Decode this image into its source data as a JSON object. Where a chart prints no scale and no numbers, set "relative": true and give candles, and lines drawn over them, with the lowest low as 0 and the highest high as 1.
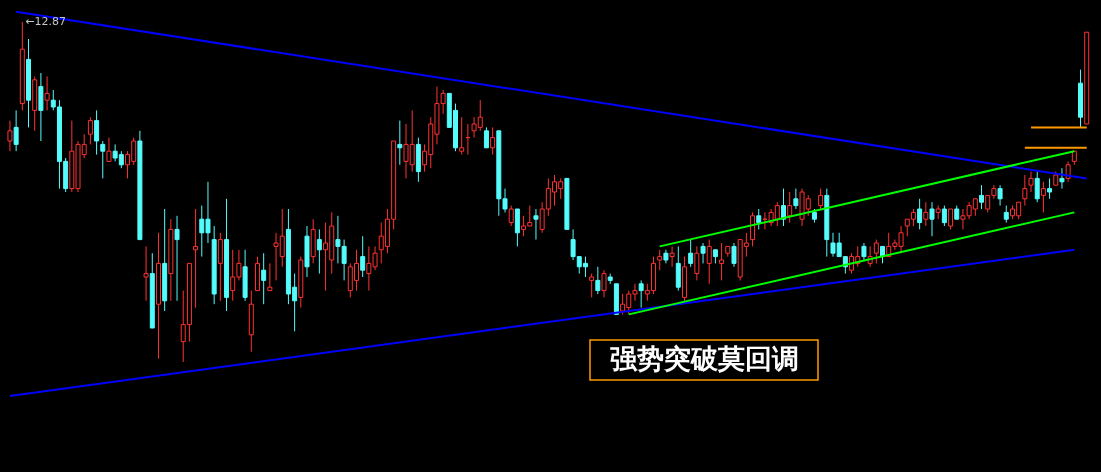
{
  "chart_data": {
    "type": "candlestick",
    "relative": true,
    "categories": [
      null,
      null,
      null,
      null,
      null,
      null,
      null,
      null,
      null,
      null,
      null,
      null,
      null,
      null,
      null,
      null,
      null,
      null,
      null,
      null,
      null,
      null,
      null,
      null,
      null,
      null,
      null,
      null,
      null,
      null,
      null,
      null,
      null,
      null,
      null,
      null,
      null,
      null,
      null,
      null,
      null,
      null,
      null,
      null,
      null,
      null,
      null,
      null,
      null,
      null,
      null,
      null,
      null,
      null,
      null,
      null,
      null,
      null,
      null,
      null,
      null,
      null,
      null,
      null,
      null,
      null,
      null,
      null,
      null,
      null,
      null,
      null,
      null,
      null,
      null,
      null,
      null,
      null,
      null,
      null,
      null,
      null,
      null,
      null,
      null,
      null,
      null,
      null,
      null,
      null,
      null,
      null,
      null,
      null,
      null,
      null,
      null,
      null,
      null,
      null,
      null,
      null,
      null,
      null,
      null,
      null,
      null,
      null,
      null,
      null,
      null,
      null,
      null,
      null,
      null,
      null,
      null,
      null,
      null,
      null,
      null,
      null,
      null,
      null,
      null,
      null,
      null,
      null,
      null,
      null,
      null,
      null,
      null,
      null,
      null,
      null,
      null,
      null,
      null,
      null,
      null,
      null,
      null,
      null,
      null,
      null,
      null,
      null,
      null,
      null,
      null,
      null,
      null,
      null,
      null,
      null,
      null,
      null,
      null,
      null,
      null,
      null,
      null,
      null,
      null,
      null,
      null,
      null,
      null,
      null,
      null,
      null,
      null,
      null,
      null
    ],
    "ohlc": [
      [
        0.65,
        0.71,
        0.62,
        0.68
      ],
      [
        0.69,
        0.74,
        0.62,
        0.64
      ],
      [
        0.76,
        1.0,
        0.74,
        0.92
      ],
      [
        0.89,
        0.95,
        0.69,
        0.77
      ],
      [
        0.74,
        0.84,
        0.68,
        0.83
      ],
      [
        0.81,
        0.85,
        0.65,
        0.74
      ],
      [
        0.77,
        0.84,
        0.74,
        0.79
      ],
      [
        0.77,
        0.8,
        0.74,
        0.75
      ],
      [
        0.75,
        0.77,
        0.51,
        0.59
      ],
      [
        0.59,
        0.6,
        0.5,
        0.51
      ],
      [
        0.51,
        0.71,
        0.5,
        0.62
      ],
      [
        0.51,
        0.65,
        0.5,
        0.64
      ],
      [
        0.61,
        0.67,
        0.6,
        0.64
      ],
      [
        0.67,
        0.72,
        0.64,
        0.71
      ],
      [
        0.71,
        0.74,
        0.61,
        0.65
      ],
      [
        0.64,
        0.65,
        0.54,
        0.62
      ],
      [
        0.59,
        0.66,
        0.59,
        0.62
      ],
      [
        0.62,
        0.64,
        0.59,
        0.6
      ],
      [
        0.61,
        0.62,
        0.57,
        0.58
      ],
      [
        0.58,
        0.62,
        0.54,
        0.61
      ],
      [
        0.59,
        0.66,
        0.58,
        0.65
      ],
      [
        0.65,
        0.68,
        0.36,
        0.36
      ],
      [
        0.25,
        0.34,
        0.18,
        0.26
      ],
      [
        0.26,
        0.32,
        0.1,
        0.1
      ],
      [
        0.17,
        0.38,
        0.01,
        0.29
      ],
      [
        0.29,
        0.45,
        0.15,
        0.18
      ],
      [
        0.26,
        0.42,
        0.18,
        0.39
      ],
      [
        0.39,
        0.43,
        0.18,
        0.36
      ],
      [
        0.06,
        0.21,
        0.0,
        0.11
      ],
      [
        0.11,
        0.29,
        0.06,
        0.29
      ],
      [
        0.33,
        0.45,
        0.16,
        0.34
      ],
      [
        0.42,
        0.46,
        0.31,
        0.38
      ],
      [
        0.42,
        0.53,
        0.35,
        0.38
      ],
      [
        0.36,
        0.4,
        0.17,
        0.2
      ],
      [
        0.29,
        0.38,
        0.18,
        0.36
      ],
      [
        0.36,
        0.48,
        0.15,
        0.19
      ],
      [
        0.21,
        0.33,
        0.18,
        0.25
      ],
      [
        0.25,
        0.33,
        0.24,
        0.29
      ],
      [
        0.28,
        0.33,
        0.18,
        0.19
      ],
      [
        0.08,
        0.21,
        0.03,
        0.17
      ],
      [
        0.21,
        0.31,
        0.21,
        0.29
      ],
      [
        0.27,
        0.32,
        0.17,
        0.24
      ],
      [
        0.21,
        0.29,
        0.21,
        0.22
      ],
      [
        0.34,
        0.38,
        0.24,
        0.35
      ],
      [
        0.31,
        0.45,
        0.28,
        0.37
      ],
      [
        0.39,
        0.45,
        0.17,
        0.2
      ],
      [
        0.22,
        0.26,
        0.09,
        0.18
      ],
      [
        0.19,
        0.31,
        0.16,
        0.3
      ],
      [
        0.37,
        0.4,
        0.25,
        0.28
      ],
      [
        0.31,
        0.42,
        0.29,
        0.39
      ],
      [
        0.36,
        0.39,
        0.26,
        0.33
      ],
      [
        0.33,
        0.41,
        0.21,
        0.35
      ],
      [
        0.3,
        0.44,
        0.26,
        0.4
      ],
      [
        0.36,
        0.43,
        0.29,
        0.34
      ],
      [
        0.34,
        0.36,
        0.24,
        0.29
      ],
      [
        0.21,
        0.29,
        0.19,
        0.28
      ],
      [
        0.24,
        0.33,
        0.21,
        0.29
      ],
      [
        0.31,
        0.37,
        0.25,
        0.27
      ],
      [
        0.26,
        0.34,
        0.21,
        0.29
      ],
      [
        0.28,
        0.34,
        0.27,
        0.32
      ],
      [
        0.33,
        0.41,
        0.29,
        0.37
      ],
      [
        0.34,
        0.45,
        0.32,
        0.42
      ],
      [
        0.42,
        0.65,
        0.39,
        0.65
      ],
      [
        0.64,
        0.71,
        0.58,
        0.63
      ],
      [
        0.59,
        0.7,
        0.54,
        0.64
      ],
      [
        0.58,
        0.74,
        0.56,
        0.64
      ],
      [
        0.64,
        0.66,
        0.53,
        0.56
      ],
      [
        0.58,
        0.64,
        0.56,
        0.62
      ],
      [
        0.61,
        0.72,
        0.57,
        0.7
      ],
      [
        0.67,
        0.81,
        0.64,
        0.76
      ],
      [
        0.76,
        0.8,
        0.73,
        0.79
      ],
      [
        0.79,
        0.79,
        0.69,
        0.69
      ],
      [
        0.74,
        0.76,
        0.62,
        0.63
      ],
      [
        0.62,
        0.72,
        0.61,
        0.63
      ],
      [
        0.66,
        0.7,
        0.61,
        0.66
      ],
      [
        0.68,
        0.72,
        0.66,
        0.7
      ],
      [
        0.69,
        0.77,
        0.68,
        0.72
      ],
      [
        0.68,
        0.69,
        0.63,
        0.63
      ],
      [
        0.63,
        0.69,
        0.61,
        0.66
      ],
      [
        0.68,
        0.68,
        0.43,
        0.48
      ],
      [
        0.48,
        0.51,
        0.44,
        0.45
      ],
      [
        0.41,
        0.46,
        0.4,
        0.45
      ],
      [
        0.45,
        0.45,
        0.34,
        0.38
      ],
      [
        0.39,
        0.43,
        0.37,
        0.4
      ],
      [
        0.4,
        0.46,
        0.4,
        0.41
      ],
      [
        0.43,
        0.45,
        0.36,
        0.42
      ],
      [
        0.39,
        0.47,
        0.38,
        0.45
      ],
      [
        0.45,
        0.54,
        0.43,
        0.51
      ],
      [
        0.5,
        0.55,
        0.46,
        0.53
      ],
      [
        0.51,
        0.54,
        0.48,
        0.53
      ],
      [
        0.54,
        0.54,
        0.39,
        0.39
      ],
      [
        0.36,
        0.39,
        0.3,
        0.31
      ],
      [
        0.31,
        0.31,
        0.26,
        0.28
      ],
      [
        0.29,
        0.31,
        0.25,
        0.28
      ],
      [
        0.24,
        0.26,
        0.19,
        0.25
      ],
      [
        0.24,
        0.28,
        0.2,
        0.21
      ],
      [
        0.21,
        0.27,
        0.19,
        0.26
      ],
      [
        0.25,
        0.26,
        0.23,
        0.24
      ],
      [
        0.23,
        0.23,
        0.14,
        0.14
      ],
      [
        0.15,
        0.2,
        0.14,
        0.17
      ],
      [
        0.16,
        0.21,
        0.14,
        0.2
      ],
      [
        0.2,
        0.23,
        0.18,
        0.21
      ],
      [
        0.23,
        0.24,
        0.16,
        0.21
      ],
      [
        0.2,
        0.23,
        0.18,
        0.21
      ],
      [
        0.21,
        0.31,
        0.2,
        0.29
      ],
      [
        0.3,
        0.33,
        0.27,
        0.31
      ],
      [
        0.32,
        0.33,
        0.29,
        0.3
      ],
      [
        0.31,
        0.34,
        0.28,
        0.32
      ],
      [
        0.29,
        0.34,
        0.21,
        0.22
      ],
      [
        0.19,
        0.31,
        0.18,
        0.28
      ],
      [
        0.32,
        0.36,
        0.28,
        0.29
      ],
      [
        0.26,
        0.34,
        0.24,
        0.32
      ],
      [
        0.34,
        0.35,
        0.29,
        0.32
      ],
      [
        0.29,
        0.36,
        0.23,
        0.34
      ],
      [
        0.33,
        0.33,
        0.29,
        0.31
      ],
      [
        0.29,
        0.35,
        0.24,
        0.3
      ],
      [
        0.32,
        0.34,
        0.31,
        0.34
      ],
      [
        0.34,
        0.35,
        0.28,
        0.29
      ],
      [
        0.25,
        0.36,
        0.24,
        0.36
      ],
      [
        0.34,
        0.38,
        0.31,
        0.35
      ],
      [
        0.36,
        0.44,
        0.34,
        0.43
      ],
      [
        0.43,
        0.45,
        0.39,
        0.41
      ],
      [
        0.42,
        0.44,
        0.39,
        0.42
      ],
      [
        0.41,
        0.45,
        0.4,
        0.44
      ],
      [
        0.42,
        0.47,
        0.4,
        0.46
      ],
      [
        0.46,
        0.51,
        0.4,
        0.42
      ],
      [
        0.43,
        0.5,
        0.41,
        0.46
      ],
      [
        0.48,
        0.51,
        0.45,
        0.46
      ],
      [
        0.42,
        0.51,
        0.4,
        0.5
      ],
      [
        0.45,
        0.49,
        0.43,
        0.48
      ],
      [
        0.44,
        0.45,
        0.41,
        0.42
      ],
      [
        0.46,
        0.51,
        0.45,
        0.49
      ],
      [
        0.49,
        0.51,
        0.31,
        0.36
      ],
      [
        0.35,
        0.38,
        0.31,
        0.32
      ],
      [
        0.35,
        0.38,
        0.31,
        0.31
      ],
      [
        0.31,
        0.31,
        0.26,
        0.28
      ],
      [
        0.27,
        0.32,
        0.26,
        0.31
      ],
      [
        0.29,
        0.34,
        0.28,
        0.31
      ],
      [
        0.34,
        0.35,
        0.3,
        0.31
      ],
      [
        0.29,
        0.34,
        0.28,
        0.31
      ],
      [
        0.32,
        0.36,
        0.29,
        0.35
      ],
      [
        0.34,
        0.34,
        0.29,
        0.31
      ],
      [
        0.31,
        0.38,
        0.31,
        0.34
      ],
      [
        0.34,
        0.36,
        0.33,
        0.35
      ],
      [
        0.34,
        0.4,
        0.32,
        0.38
      ],
      [
        0.4,
        0.42,
        0.37,
        0.42
      ],
      [
        0.42,
        0.45,
        0.4,
        0.44
      ],
      [
        0.45,
        0.48,
        0.39,
        0.41
      ],
      [
        0.42,
        0.47,
        0.4,
        0.44
      ],
      [
        0.45,
        0.47,
        0.37,
        0.42
      ],
      [
        0.44,
        0.46,
        0.42,
        0.45
      ],
      [
        0.45,
        0.46,
        0.4,
        0.41
      ],
      [
        0.4,
        0.45,
        0.39,
        0.45
      ],
      [
        0.45,
        0.46,
        0.42,
        0.42
      ],
      [
        0.42,
        0.45,
        0.39,
        0.43
      ],
      [
        0.43,
        0.47,
        0.42,
        0.46
      ],
      [
        0.45,
        0.48,
        0.43,
        0.48
      ],
      [
        0.49,
        0.52,
        0.45,
        0.47
      ],
      [
        0.45,
        0.49,
        0.44,
        0.49
      ],
      [
        0.49,
        0.52,
        0.48,
        0.51
      ],
      [
        0.51,
        0.52,
        0.46,
        0.48
      ],
      [
        0.44,
        0.46,
        0.41,
        0.42
      ],
      [
        0.43,
        0.46,
        0.42,
        0.45
      ],
      [
        0.43,
        0.47,
        0.42,
        0.47
      ],
      [
        0.48,
        0.55,
        0.46,
        0.51
      ],
      [
        0.52,
        0.56,
        0.5,
        0.54
      ],
      [
        0.54,
        0.56,
        0.47,
        0.48
      ],
      [
        0.49,
        0.53,
        0.44,
        0.51
      ],
      [
        0.51,
        0.54,
        0.48,
        0.5
      ],
      [
        0.52,
        0.56,
        0.52,
        0.55
      ],
      [
        0.54,
        0.57,
        0.51,
        0.53
      ],
      [
        0.54,
        0.59,
        0.53,
        0.58
      ],
      [
        0.59,
        0.62,
        0.58,
        0.62
      ],
      [
        0.82,
        0.86,
        0.69,
        0.72
      ],
      [
        0.7,
        0.97,
        0.7,
        0.97
      ]
    ],
    "series": [
      {
        "type": "line",
        "color": "#0000ff",
        "values": [
          null,
          1.03,
          null,
          null,
          null,
          null,
          null,
          null,
          null,
          null,
          null,
          null,
          null,
          null,
          null,
          null,
          null,
          null,
          null,
          null,
          null,
          null,
          null,
          null,
          null,
          null,
          null,
          null,
          null,
          null,
          null,
          null,
          null,
          null,
          null,
          null,
          null,
          null,
          null,
          null,
          null,
          null,
          null,
          null,
          null,
          null,
          null,
          null,
          null,
          null,
          null,
          null,
          null,
          null,
          null,
          null,
          null,
          null,
          null,
          null,
          null,
          null,
          null,
          null,
          null,
          null,
          null,
          null,
          null,
          null,
          null,
          null,
          null,
          null,
          null,
          null,
          null,
          null,
          null,
          null,
          null,
          null,
          null,
          null,
          null,
          null,
          null,
          null,
          null,
          null,
          null,
          null,
          null,
          null,
          null,
          null,
          null,
          null,
          null,
          null,
          null,
          null,
          null,
          null,
          null,
          null,
          null,
          null,
          null,
          null,
          null,
          null,
          null,
          null,
          null,
          null,
          null,
          null,
          null,
          null,
          null,
          null,
          null,
          null,
          null,
          null,
          null,
          null,
          null,
          null,
          null,
          null,
          null,
          null,
          null,
          null,
          null,
          null,
          null,
          null,
          null,
          null,
          null,
          null,
          null,
          null,
          null,
          null,
          null,
          null,
          null,
          null,
          null,
          null,
          null,
          null,
          null,
          null,
          null,
          null,
          null,
          null,
          null,
          null,
          null,
          null,
          null,
          null,
          null,
          null,
          null,
          null,
          null,
          null,
          0.54
        ]
      },
      {
        "type": "line",
        "color": "#0000ff",
        "values": [
          -0.1,
          null,
          null,
          null,
          null,
          null,
          null,
          null,
          null,
          null,
          null,
          null,
          null,
          null,
          null,
          null,
          null,
          null,
          null,
          null,
          null,
          null,
          null,
          null,
          null,
          null,
          null,
          null,
          null,
          null,
          null,
          null,
          null,
          null,
          null,
          null,
          null,
          null,
          null,
          null,
          null,
          null,
          null,
          null,
          null,
          null,
          null,
          null,
          null,
          null,
          null,
          null,
          null,
          null,
          null,
          null,
          null,
          null,
          null,
          null,
          null,
          null,
          null,
          null,
          null,
          null,
          null,
          null,
          null,
          null,
          null,
          null,
          null,
          null,
          null,
          null,
          null,
          null,
          null,
          null,
          null,
          null,
          null,
          null,
          null,
          null,
          null,
          null,
          null,
          null,
          null,
          null,
          null,
          null,
          null,
          null,
          null,
          null,
          null,
          null,
          null,
          null,
          null,
          null,
          null,
          null,
          null,
          null,
          null,
          null,
          null,
          null,
          null,
          null,
          null,
          null,
          null,
          null,
          null,
          null,
          null,
          null,
          null,
          null,
          null,
          null,
          null,
          null,
          null,
          null,
          null,
          null,
          null,
          null,
          null,
          null,
          null,
          null,
          null,
          null,
          null,
          null,
          null,
          null,
          null,
          null,
          null,
          null,
          null,
          null,
          null,
          null,
          null,
          null,
          null,
          null,
          null,
          null,
          null,
          null,
          null,
          null,
          null,
          null,
          null,
          null,
          null,
          null,
          null,
          null,
          null,
          null,
          0.33,
          null,
          null
        ]
      },
      {
        "type": "line",
        "color": "#00ff00",
        "values": [
          null,
          null,
          null,
          null,
          null,
          null,
          null,
          null,
          null,
          null,
          null,
          null,
          null,
          null,
          null,
          null,
          null,
          null,
          null,
          null,
          null,
          null,
          null,
          null,
          null,
          null,
          null,
          null,
          null,
          null,
          null,
          null,
          null,
          null,
          null,
          null,
          null,
          null,
          null,
          null,
          null,
          null,
          null,
          null,
          null,
          null,
          null,
          null,
          null,
          null,
          null,
          null,
          null,
          null,
          null,
          null,
          null,
          null,
          null,
          null,
          null,
          null,
          null,
          null,
          null,
          null,
          null,
          null,
          null,
          null,
          null,
          null,
          null,
          null,
          null,
          null,
          null,
          null,
          null,
          null,
          null,
          null,
          null,
          null,
          null,
          null,
          null,
          null,
          null,
          null,
          null,
          null,
          null,
          null,
          null,
          null,
          null,
          null,
          null,
          null,
          null,
          null,
          null,
          null,
          null,
          0.34,
          null,
          null,
          null,
          null,
          null,
          null,
          null,
          null,
          null,
          null,
          null,
          null,
          null,
          null,
          null,
          null,
          null,
          null,
          null,
          null,
          null,
          null,
          null,
          null,
          null,
          null,
          null,
          null,
          null,
          null,
          null,
          null,
          null,
          null,
          null,
          null,
          null,
          null,
          null,
          null,
          null,
          null,
          null,
          null,
          null,
          null,
          null,
          null,
          null,
          null,
          null,
          null,
          null,
          null,
          null,
          null,
          null,
          null,
          null,
          null,
          null,
          null,
          null,
          null,
          null,
          null,
          0.62,
          null,
          null
        ]
      },
      {
        "type": "line",
        "color": "#00ff00",
        "values": [
          null,
          null,
          null,
          null,
          null,
          null,
          null,
          null,
          null,
          null,
          null,
          null,
          null,
          null,
          null,
          null,
          null,
          null,
          null,
          null,
          null,
          null,
          null,
          null,
          null,
          null,
          null,
          null,
          null,
          null,
          null,
          null,
          null,
          null,
          null,
          null,
          null,
          null,
          null,
          null,
          null,
          null,
          null,
          null,
          null,
          null,
          null,
          null,
          null,
          null,
          null,
          null,
          null,
          null,
          null,
          null,
          null,
          null,
          null,
          null,
          null,
          null,
          null,
          null,
          null,
          null,
          null,
          null,
          null,
          null,
          null,
          null,
          null,
          null,
          null,
          null,
          null,
          null,
          null,
          null,
          null,
          null,
          null,
          null,
          null,
          null,
          null,
          null,
          null,
          null,
          null,
          null,
          null,
          null,
          null,
          null,
          null,
          null,
          null,
          null,
          0.14,
          null,
          null,
          null,
          null,
          null,
          null,
          null,
          null,
          null,
          null,
          null,
          null,
          null,
          null,
          null,
          null,
          null,
          null,
          null,
          null,
          null,
          null,
          null,
          null,
          null,
          null,
          null,
          null,
          null,
          null,
          null,
          null,
          null,
          null,
          null,
          null,
          null,
          null,
          null,
          null,
          null,
          null,
          null,
          null,
          null,
          null,
          null,
          null,
          null,
          null,
          null,
          null,
          null,
          null,
          null,
          null,
          null,
          null,
          null,
          null,
          null,
          null,
          null,
          null,
          null,
          null,
          null,
          null,
          null,
          null,
          null,
          0.44,
          null,
          null
        ]
      },
      {
        "type": "line",
        "color": "#ff9900",
        "values": [
          null,
          null,
          null,
          null,
          null,
          null,
          null,
          null,
          null,
          null,
          null,
          null,
          null,
          null,
          null,
          null,
          null,
          null,
          null,
          null,
          null,
          null,
          null,
          null,
          null,
          null,
          null,
          null,
          null,
          null,
          null,
          null,
          null,
          null,
          null,
          null,
          null,
          null,
          null,
          null,
          null,
          null,
          null,
          null,
          null,
          null,
          null,
          null,
          null,
          null,
          null,
          null,
          null,
          null,
          null,
          null,
          null,
          null,
          null,
          null,
          null,
          null,
          null,
          null,
          null,
          null,
          null,
          null,
          null,
          null,
          null,
          null,
          null,
          null,
          null,
          null,
          null,
          null,
          null,
          null,
          null,
          null,
          null,
          null,
          null,
          null,
          null,
          null,
          null,
          null,
          null,
          null,
          null,
          null,
          null,
          null,
          null,
          null,
          null,
          null,
          null,
          null,
          null,
          null,
          null,
          null,
          null,
          null,
          null,
          null,
          null,
          null,
          null,
          null,
          null,
          null,
          null,
          null,
          null,
          null,
          null,
          null,
          null,
          null,
          null,
          null,
          null,
          null,
          null,
          null,
          null,
          null,
          null,
          null,
          null,
          null,
          null,
          null,
          null,
          null,
          null,
          null,
          null,
          null,
          null,
          null,
          null,
          null,
          null,
          null,
          null,
          null,
          null,
          null,
          null,
          null,
          null,
          null,
          null,
          null,
          null,
          null,
          null,
          null,
          null,
          0.69,
          null,
          null,
          null,
          null,
          null,
          null,
          null,
          null,
          0.69
        ]
      },
      {
        "type": "line",
        "color": "#ff9900",
        "values": [
          null,
          null,
          null,
          null,
          null,
          null,
          null,
          null,
          null,
          null,
          null,
          null,
          null,
          null,
          null,
          null,
          null,
          null,
          null,
          null,
          null,
          null,
          null,
          null,
          null,
          null,
          null,
          null,
          null,
          null,
          null,
          null,
          null,
          null,
          null,
          null,
          null,
          null,
          null,
          null,
          null,
          null,
          null,
          null,
          null,
          null,
          null,
          null,
          null,
          null,
          null,
          null,
          null,
          null,
          null,
          null,
          null,
          null,
          null,
          null,
          null,
          null,
          null,
          null,
          null,
          null,
          null,
          null,
          null,
          null,
          null,
          null,
          null,
          null,
          null,
          null,
          null,
          null,
          null,
          null,
          null,
          null,
          null,
          null,
          null,
          null,
          null,
          null,
          null,
          null,
          null,
          null,
          null,
          null,
          null,
          null,
          null,
          null,
          null,
          null,
          null,
          null,
          null,
          null,
          null,
          null,
          null,
          null,
          null,
          null,
          null,
          null,
          null,
          null,
          null,
          null,
          null,
          null,
          null,
          null,
          null,
          null,
          null,
          null,
          null,
          null,
          null,
          null,
          null,
          null,
          null,
          null,
          null,
          null,
          null,
          null,
          null,
          null,
          null,
          null,
          null,
          null,
          null,
          null,
          null,
          null,
          null,
          null,
          null,
          null,
          null,
          null,
          null,
          null,
          null,
          null,
          null,
          null,
          null,
          null,
          null,
          null,
          null,
          null,
          0.63,
          null,
          null,
          null,
          null,
          null,
          null,
          null,
          null,
          null,
          0.63
        ]
      }
    ],
    "annotations": [
      {
        "text": "←12.87",
        "y": 1.0
      },
      "强势突破莫回调"
    ]
  }
}
